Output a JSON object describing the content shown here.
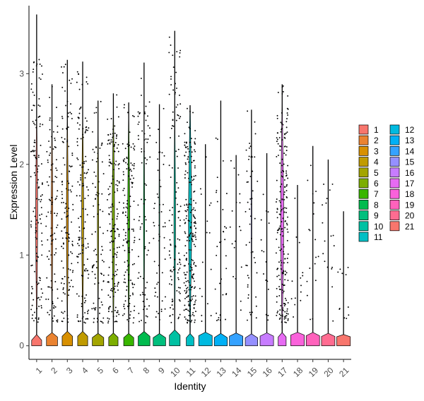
{
  "chart_data": {
    "type": "violin",
    "title": "",
    "xlabel": "Identity",
    "ylabel": "Expression Level",
    "ylim": [
      -0.15,
      3.75
    ],
    "yticks": [
      0,
      1,
      2,
      3
    ],
    "categories": [
      "1",
      "2",
      "3",
      "4",
      "5",
      "6",
      "7",
      "8",
      "9",
      "10",
      "11",
      "12",
      "13",
      "14",
      "15",
      "16",
      "17",
      "18",
      "19",
      "20",
      "21"
    ],
    "colors": [
      "#F8766D",
      "#EA8331",
      "#D89000",
      "#C09B00",
      "#A3A500",
      "#7CAE00",
      "#39B600",
      "#00BB4E",
      "#00BF7D",
      "#00C1A3",
      "#00BFC4",
      "#00BAE0",
      "#00B0F6",
      "#35A2FF",
      "#9590FF",
      "#C77CFF",
      "#E76BF3",
      "#FA62DB",
      "#FF62BC",
      "#FF6C91",
      "#F8766D"
    ],
    "max_values": [
      3.65,
      2.88,
      3.15,
      3.13,
      2.7,
      2.78,
      2.68,
      3.12,
      2.66,
      3.47,
      2.65,
      2.22,
      2.7,
      2.1,
      2.6,
      2.12,
      2.88,
      1.77,
      2.2,
      2.05,
      1.48
    ],
    "nonzero_fraction": [
      0.55,
      0.4,
      0.5,
      0.55,
      0.35,
      0.65,
      0.55,
      0.3,
      0.2,
      0.45,
      0.9,
      0.05,
      0.12,
      0.06,
      0.2,
      0.05,
      0.85,
      0.04,
      0.06,
      0.06,
      0.03
    ],
    "legend": {
      "position": "right",
      "columns": 2,
      "col1": [
        "1",
        "2",
        "3",
        "4",
        "5",
        "6",
        "7",
        "8",
        "9",
        "10",
        "11"
      ],
      "col2": [
        "12",
        "13",
        "14",
        "15",
        "16",
        "17",
        "18",
        "19",
        "20",
        "21"
      ]
    }
  }
}
